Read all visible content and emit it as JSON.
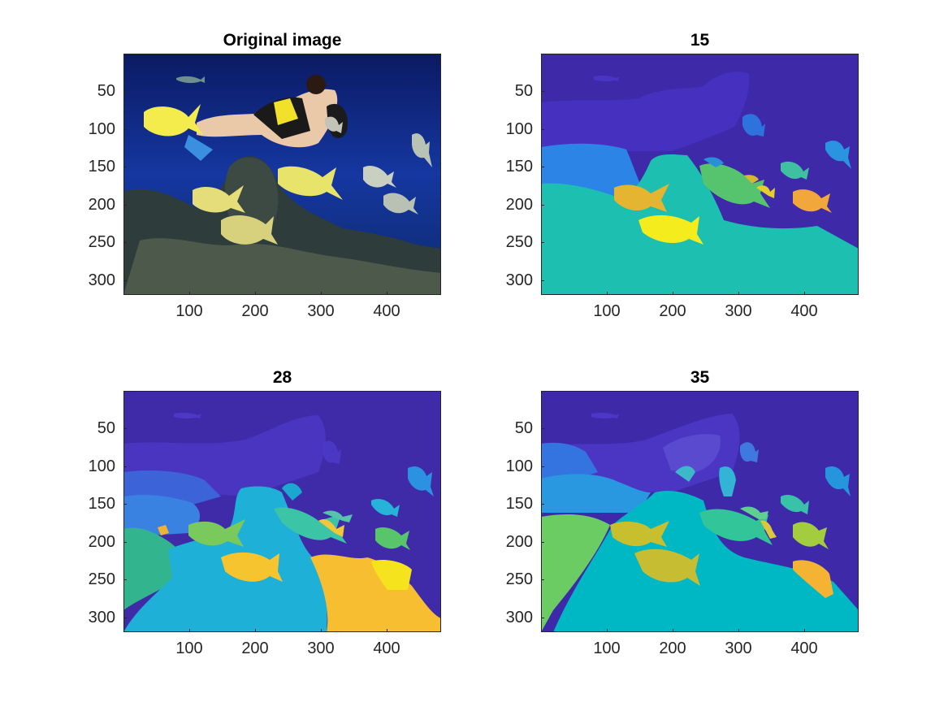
{
  "figure": {
    "panels": [
      {
        "id": "original",
        "title": "Original image"
      },
      {
        "id": "seg15",
        "title": "15"
      },
      {
        "id": "seg28",
        "title": "28"
      },
      {
        "id": "seg35",
        "title": "35"
      }
    ],
    "y_ticks": [
      "50",
      "100",
      "150",
      "200",
      "250",
      "300"
    ],
    "x_ticks": [
      "100",
      "200",
      "300",
      "400"
    ]
  },
  "colors": {
    "axis": "#262626",
    "deep_water": "#0a1f6e",
    "seg_dark_purple": "#3e2aa8",
    "seg_blue": "#2a7de0",
    "seg_teal": "#1cbfb0",
    "seg_green": "#5cc46a",
    "seg_yellow": "#f5e51b",
    "seg_orange": "#f7b733"
  }
}
